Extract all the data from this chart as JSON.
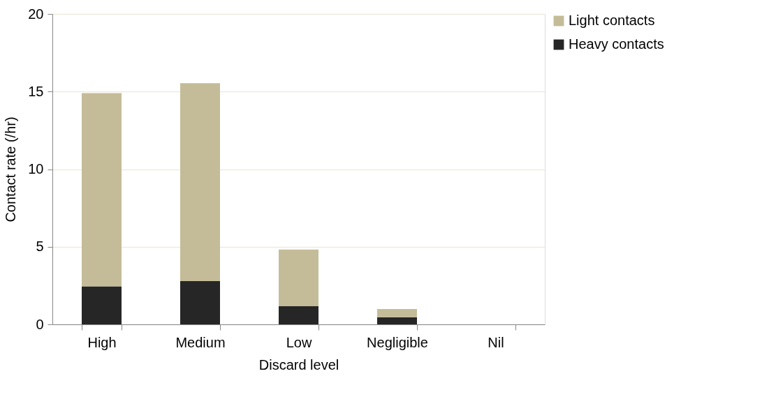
{
  "chart_data": {
    "type": "bar",
    "stacked": true,
    "xlabel": "Discard level",
    "ylabel": "Contact rate (/hr)",
    "categories": [
      "High",
      "Medium",
      "Low",
      "Negligible",
      "Nil"
    ],
    "series": [
      {
        "name": "Heavy contacts",
        "color": "#262626",
        "values": [
          2.45,
          2.79,
          1.17,
          0.46,
          0
        ]
      },
      {
        "name": "Light contacts",
        "color": "#c4bc98",
        "values": [
          12.45,
          12.75,
          3.65,
          0.53,
          0
        ]
      }
    ],
    "ylim": [
      0,
      20
    ],
    "yticks": [
      0,
      5,
      10,
      15,
      20
    ],
    "grid": "y",
    "legend": "right"
  }
}
